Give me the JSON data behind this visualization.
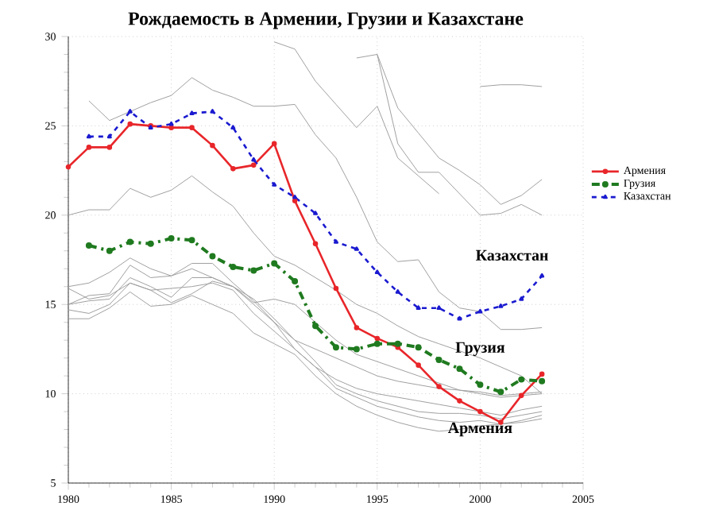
{
  "chart_data": {
    "type": "line",
    "title": "Рождаемость в Армении, Грузии и Казахстане",
    "x": [
      1980,
      1981,
      1982,
      1983,
      1984,
      1985,
      1986,
      1987,
      1988,
      1989,
      1990,
      1991,
      1992,
      1993,
      1994,
      1995,
      1996,
      1997,
      1998,
      1999,
      2000,
      2001,
      2002,
      2003
    ],
    "xlim": [
      1980,
      2005
    ],
    "xticks": [
      1980,
      1985,
      1990,
      1995,
      2000,
      2005
    ],
    "ylim": [
      5,
      30
    ],
    "yticks": [
      5,
      10,
      15,
      20,
      25,
      30
    ],
    "grid": true,
    "legend": "right",
    "series": [
      {
        "color": "#a0a0a0",
        "marker": "none",
        "line_style": "solid",
        "values": [
          20.0,
          20.3,
          20.3,
          21.5,
          21.0,
          21.4,
          22.2,
          21.3,
          20.5,
          19.0,
          17.7,
          17.2,
          16.5,
          15.8,
          15.0,
          14.5,
          13.8,
          13.2,
          12.8,
          12.4,
          12.0,
          11.5,
          11.0,
          10.0
        ]
      },
      {
        "color": "#a0a0a0",
        "marker": "none",
        "line_style": "solid",
        "values": [
          null,
          26.4,
          25.3,
          25.8,
          26.3,
          26.7,
          27.7,
          27.0,
          26.6,
          26.1,
          26.1,
          26.2,
          24.5,
          23.2,
          21.0,
          18.5,
          17.4,
          17.5,
          15.7,
          14.8,
          14.6,
          13.6,
          13.6,
          13.7
        ]
      },
      {
        "color": "#a0a0a0",
        "marker": "none",
        "line_style": "solid",
        "values": [
          null,
          null,
          null,
          null,
          null,
          null,
          null,
          null,
          null,
          null,
          29.7,
          29.3,
          27.5,
          26.2,
          24.9,
          26.1,
          23.2,
          22.2,
          21.2,
          null,
          null,
          null,
          null,
          null
        ]
      },
      {
        "color": "#a0a0a0",
        "marker": "none",
        "line_style": "solid",
        "values": [
          null,
          null,
          null,
          null,
          null,
          null,
          null,
          null,
          null,
          null,
          null,
          null,
          null,
          null,
          28.8,
          29.0,
          24.0,
          22.4,
          22.4,
          21.2,
          20.0,
          20.1,
          20.6,
          20.0
        ]
      },
      {
        "color": "#a0a0a0",
        "marker": "none",
        "line_style": "solid",
        "values": [
          null,
          null,
          null,
          null,
          null,
          null,
          null,
          null,
          null,
          null,
          null,
          null,
          null,
          null,
          null,
          29.0,
          26.0,
          24.6,
          23.2,
          22.5,
          21.7,
          20.6,
          21.1,
          22.0
        ]
      },
      {
        "color": "#a0a0a0",
        "marker": "none",
        "line_style": "solid",
        "values": [
          null,
          null,
          null,
          null,
          null,
          null,
          null,
          null,
          null,
          null,
          null,
          null,
          null,
          null,
          null,
          null,
          null,
          null,
          null,
          null,
          27.2,
          27.3,
          27.3,
          27.2
        ]
      },
      {
        "color": "#a0a0a0",
        "marker": "none",
        "line_style": "solid",
        "values": [
          16.0,
          16.2,
          16.8,
          17.6,
          17.0,
          16.6,
          17.0,
          16.5,
          16.0,
          15.0,
          14.0,
          13.0,
          12.5,
          12.0,
          11.5,
          11.0,
          10.7,
          10.5,
          10.3,
          10.2,
          10.1,
          9.9,
          10.0,
          10.1
        ]
      },
      {
        "color": "#a0a0a0",
        "marker": "none",
        "line_style": "solid",
        "values": [
          15.0,
          15.5,
          15.6,
          17.2,
          16.5,
          16.6,
          17.3,
          17.3,
          16.2,
          15.2,
          14.0,
          12.5,
          11.5,
          10.8,
          10.3,
          10.0,
          9.8,
          9.6,
          9.4,
          9.2,
          9.0,
          8.8,
          9.1,
          9.3
        ]
      },
      {
        "color": "#a0a0a0",
        "marker": "none",
        "line_style": "solid",
        "values": [
          15.0,
          15.2,
          15.3,
          16.5,
          16.0,
          15.4,
          16.5,
          16.5,
          16.0,
          15.3,
          14.2,
          13.0,
          11.8,
          10.5,
          10.0,
          9.6,
          9.3,
          9.0,
          8.9,
          8.9,
          8.8,
          8.6,
          8.8,
          9.0
        ]
      },
      {
        "color": "#a0a0a0",
        "marker": "none",
        "line_style": "solid",
        "values": [
          14.7,
          14.5,
          15.0,
          16.2,
          15.8,
          15.9,
          16.0,
          16.2,
          15.8,
          14.5,
          13.5,
          12.5,
          11.5,
          10.3,
          9.8,
          9.3,
          9.0,
          8.7,
          8.5,
          8.4,
          8.5,
          8.3,
          8.5,
          8.8
        ]
      },
      {
        "color": "#a0a0a0",
        "marker": "none",
        "line_style": "solid",
        "values": [
          14.2,
          14.2,
          14.8,
          15.7,
          14.9,
          15.0,
          15.5,
          15.0,
          14.5,
          13.4,
          12.8,
          12.2,
          11.0,
          10.0,
          9.3,
          8.8,
          8.4,
          8.1,
          7.9,
          8.0,
          8.2,
          8.3,
          8.4,
          8.6
        ]
      },
      {
        "color": "#a0a0a0",
        "marker": "none",
        "line_style": "solid",
        "values": [
          15.9,
          15.3,
          15.5,
          16.2,
          15.8,
          15.1,
          15.6,
          16.3,
          16.0,
          15.1,
          15.3,
          15.0,
          14.0,
          13.0,
          12.2,
          11.8,
          11.4,
          11.0,
          10.6,
          10.2,
          10.0,
          9.8,
          9.9,
          10.0
        ]
      },
      {
        "name": "Армения",
        "color": "#e8262a",
        "marker": "circle",
        "line_style": "solid",
        "values": [
          22.7,
          23.8,
          23.8,
          25.1,
          25.0,
          24.9,
          24.9,
          23.9,
          22.6,
          22.8,
          24.0,
          20.8,
          18.4,
          15.9,
          13.7,
          13.1,
          12.6,
          11.6,
          10.4,
          9.6,
          9.0,
          8.4,
          9.9,
          11.1
        ]
      },
      {
        "name": "Грузия",
        "color": "#1f7a1f",
        "marker": "circle",
        "line_style": "dashdot",
        "values": [
          null,
          18.3,
          18.0,
          18.5,
          18.4,
          18.7,
          18.6,
          17.7,
          17.1,
          16.9,
          17.3,
          16.3,
          13.8,
          12.6,
          12.5,
          12.8,
          12.8,
          12.6,
          11.9,
          11.4,
          10.5,
          10.1,
          10.8,
          10.7
        ]
      },
      {
        "name": "Казахстан",
        "color": "#1a1ad0",
        "marker": "triangle",
        "line_style": "dashed",
        "values": [
          null,
          24.4,
          24.4,
          25.8,
          24.9,
          25.1,
          25.7,
          25.8,
          24.9,
          23.1,
          21.7,
          21.0,
          20.1,
          18.5,
          18.1,
          16.8,
          15.7,
          14.8,
          14.8,
          14.2,
          14.6,
          14.9,
          15.3,
          16.6
        ]
      }
    ],
    "annotations": [
      "Казахстан",
      "Грузия",
      "Армения"
    ]
  }
}
